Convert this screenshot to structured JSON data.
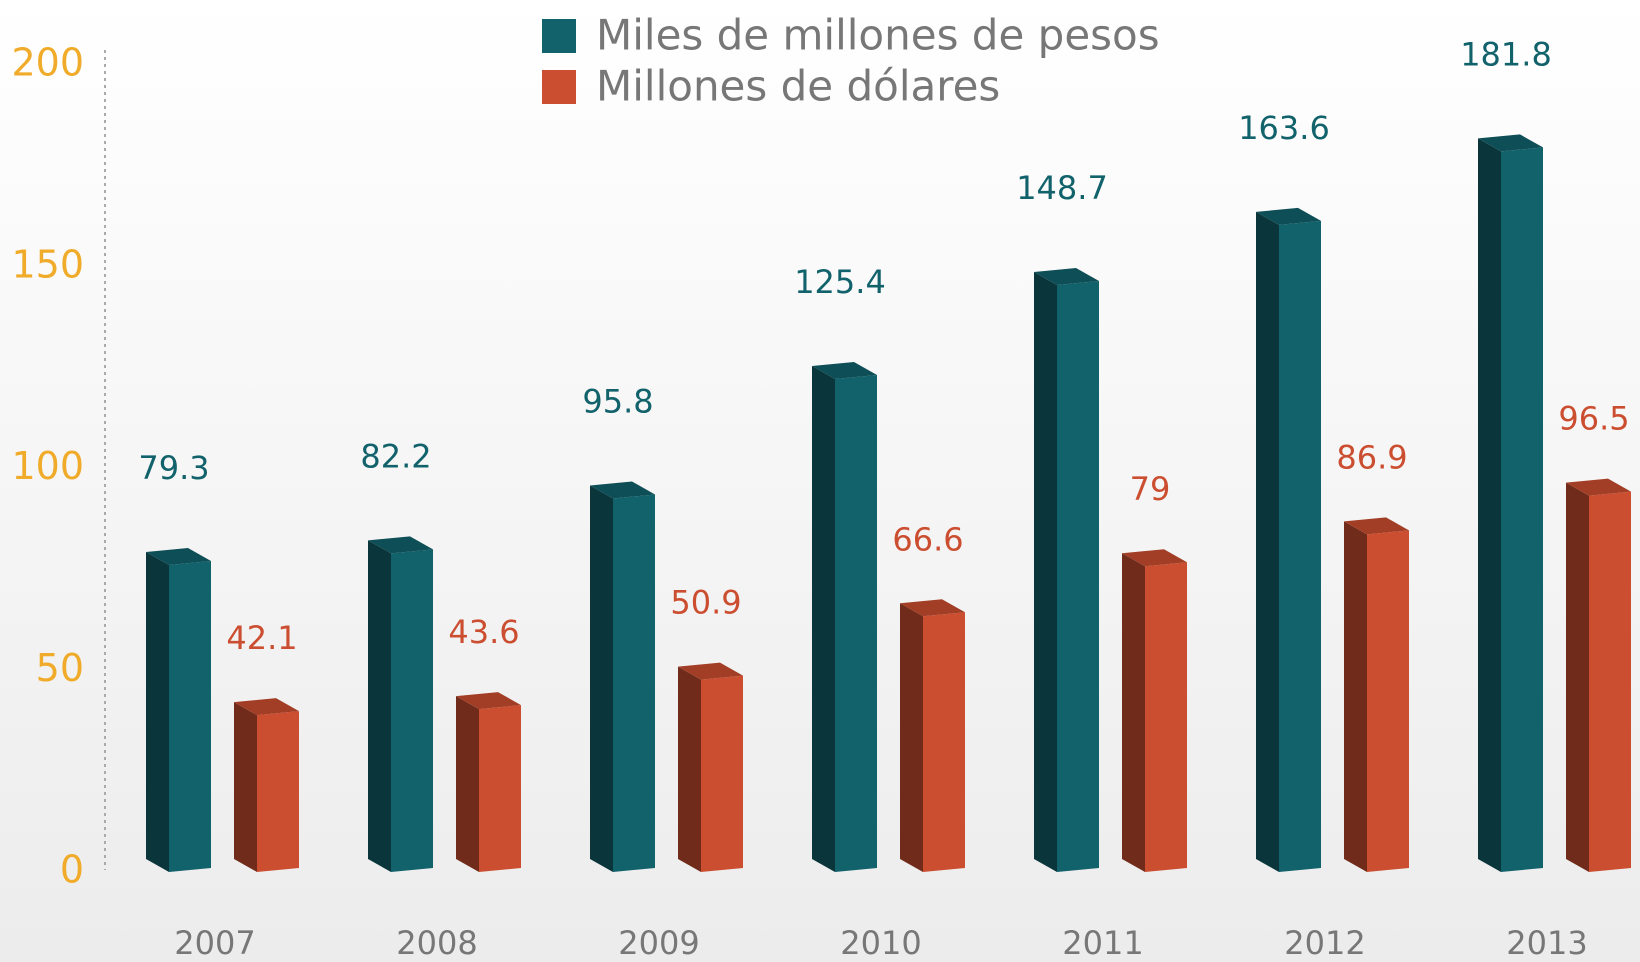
{
  "chart_data": {
    "type": "bar3d",
    "categories": [
      "2007",
      "2008",
      "2009",
      "2010",
      "2011",
      "2012",
      "2013"
    ],
    "series": [
      {
        "name": "Miles de millones de pesos",
        "color": "#12626c",
        "values": [
          79.3,
          82.2,
          95.8,
          125.4,
          148.7,
          163.6,
          181.8
        ]
      },
      {
        "name": "Millones de dólares",
        "color": "#cc4e30",
        "values": [
          42.1,
          43.6,
          50.9,
          66.6,
          79,
          86.9,
          96.5
        ]
      }
    ],
    "ylim": [
      0,
      200
    ],
    "yticks": [
      0,
      50,
      100,
      150,
      200
    ],
    "tick_color": "#f0ab2a"
  }
}
